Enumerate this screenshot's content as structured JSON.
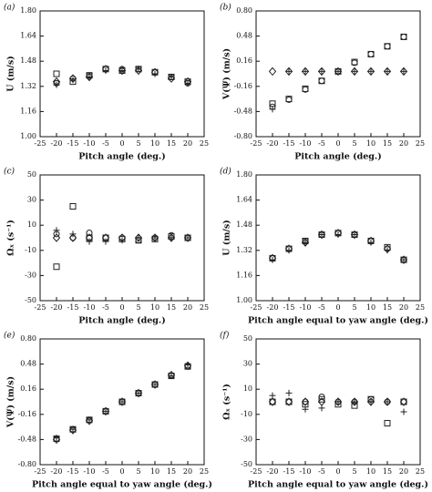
{
  "chart_data": [
    {
      "type": "scatter",
      "label": "(a)",
      "x_label": "Pitch angle (deg.)",
      "y_label": "U (m/s)",
      "x": [
        -20,
        -15,
        -10,
        -5,
        0,
        5,
        10,
        15,
        20
      ],
      "xlim": [
        -25,
        25
      ],
      "xticks": [
        -25,
        -20,
        -15,
        -10,
        -5,
        0,
        5,
        10,
        15,
        20,
        25
      ],
      "ylim": [
        1.0,
        1.8
      ],
      "yticks": [
        {
          "value": 1.0,
          "label": "1.00"
        },
        1.16,
        1.32,
        1.48,
        1.64,
        {
          "value": 1.8,
          "label": "1.80"
        }
      ],
      "series": [
        {
          "marker": "square",
          "color": "#222",
          "values": [
            1.4,
            1.35,
            1.39,
            1.43,
            1.42,
            1.43,
            1.41,
            1.38,
            1.35
          ]
        },
        {
          "marker": "circle",
          "color": "#222",
          "values": [
            1.34,
            1.37,
            1.39,
            1.43,
            1.43,
            1.43,
            1.41,
            1.38,
            1.34
          ]
        },
        {
          "marker": "diamond",
          "color": "#222",
          "values": [
            1.35,
            1.37,
            1.38,
            1.43,
            1.42,
            1.42,
            1.41,
            1.37,
            1.35
          ]
        },
        {
          "marker": "plus",
          "color": "#222",
          "values": [
            1.33,
            1.36,
            1.38,
            1.42,
            1.42,
            1.43,
            1.4,
            1.38,
            1.34
          ]
        }
      ]
    },
    {
      "type": "scatter",
      "label": "(b)",
      "x_label": "Pitch angle (deg.)",
      "y_label": "V(Ψ) (m/s)",
      "x": [
        -20,
        -15,
        -10,
        -5,
        0,
        5,
        10,
        15,
        20
      ],
      "xlim": [
        -25,
        25
      ],
      "xticks": [
        -25,
        -20,
        -15,
        -10,
        -5,
        0,
        5,
        10,
        15,
        20,
        25
      ],
      "ylim": [
        -0.8,
        0.8
      ],
      "yticks": [
        {
          "value": -0.8,
          "label": "-0.80"
        },
        -0.48,
        -0.16,
        0.16,
        0.48,
        {
          "value": 0.8,
          "label": "0.80"
        }
      ],
      "series": [
        {
          "marker": "square",
          "color": "#222",
          "values": [
            -0.38,
            -0.32,
            -0.19,
            -0.09,
            0.03,
            0.15,
            0.25,
            0.35,
            0.47
          ]
        },
        {
          "marker": "circle",
          "color": "#222",
          "values": [
            -0.42,
            -0.33,
            -0.2,
            -0.09,
            0.03,
            0.14,
            0.25,
            0.35,
            0.47
          ]
        },
        {
          "marker": "diamond",
          "color": "#222",
          "values": [
            0.03,
            0.03,
            0.03,
            0.03,
            0.03,
            0.03,
            0.03,
            0.03,
            0.03
          ]
        },
        {
          "marker": "plus",
          "color": "#222",
          "values": [
            -0.45,
            0.03,
            0.03,
            0.03,
            0.03,
            0.03,
            0.03,
            0.03,
            0.03
          ]
        }
      ]
    },
    {
      "type": "scatter",
      "label": "(c)",
      "x_label": "Pitch angle (deg.)",
      "y_label": "Ωₓ (s⁻¹)",
      "x": [
        -20,
        -15,
        -10,
        -5,
        0,
        5,
        10,
        15,
        20
      ],
      "xlim": [
        -25,
        25
      ],
      "xticks": [
        -25,
        -20,
        -15,
        -10,
        -5,
        0,
        5,
        10,
        15,
        20,
        25
      ],
      "ylim": [
        -50,
        50
      ],
      "yticks": [
        -50,
        -30,
        -10,
        10,
        30,
        50
      ],
      "series": [
        {
          "marker": "square",
          "color": "#222",
          "values": [
            -23,
            25,
            0,
            0,
            -1,
            -2,
            -1,
            1,
            0
          ]
        },
        {
          "marker": "circle",
          "color": "#222",
          "values": [
            3,
            0,
            4,
            0,
            0,
            -2,
            0,
            2,
            0
          ]
        },
        {
          "marker": "diamond",
          "color": "#222",
          "values": [
            0,
            0,
            0,
            0,
            0,
            0,
            0,
            0,
            0
          ]
        },
        {
          "marker": "plus",
          "color": "#222",
          "values": [
            6,
            3,
            -3,
            -3,
            -2,
            0,
            0,
            0,
            0
          ]
        }
      ]
    },
    {
      "type": "scatter",
      "label": "(d)",
      "x_label": "Pitch angle equal to yaw angle (deg.)",
      "y_label": "U (m/s)",
      "x": [
        -20,
        -15,
        -10,
        -5,
        0,
        5,
        10,
        15,
        20
      ],
      "xlim": [
        -25,
        25
      ],
      "xticks": [
        -25,
        -20,
        -15,
        -10,
        -5,
        0,
        5,
        10,
        15,
        20,
        25
      ],
      "ylim": [
        1.0,
        1.8
      ],
      "yticks": [
        {
          "value": 1.0,
          "label": "1.00"
        },
        1.16,
        1.32,
        1.48,
        1.64,
        {
          "value": 1.8,
          "label": "1.80"
        }
      ],
      "series": [
        {
          "marker": "square",
          "color": "#222",
          "values": [
            1.27,
            1.33,
            1.38,
            1.42,
            1.43,
            1.42,
            1.38,
            1.34,
            1.26
          ]
        },
        {
          "marker": "circle",
          "color": "#222",
          "values": [
            1.27,
            1.33,
            1.38,
            1.42,
            1.43,
            1.42,
            1.38,
            1.33,
            1.26
          ]
        },
        {
          "marker": "diamond",
          "color": "#222",
          "values": [
            1.27,
            1.33,
            1.37,
            1.42,
            1.43,
            1.42,
            1.38,
            1.33,
            1.26
          ]
        },
        {
          "marker": "plus",
          "color": "#222",
          "values": [
            1.26,
            1.32,
            1.37,
            1.42,
            1.42,
            1.42,
            1.37,
            1.32,
            1.26
          ]
        }
      ]
    },
    {
      "type": "scatter",
      "label": "(e)",
      "x_label": "Pitch angle equal to yaw angle (deg.)",
      "y_label": "V(Ψ) (m/s)",
      "x": [
        -20,
        -15,
        -10,
        -5,
        0,
        5,
        10,
        15,
        20
      ],
      "xlim": [
        -25,
        25
      ],
      "xticks": [
        -25,
        -20,
        -15,
        -10,
        -5,
        0,
        5,
        10,
        15,
        20,
        25
      ],
      "ylim": [
        -0.8,
        0.8
      ],
      "yticks": [
        {
          "value": -0.8,
          "label": "-0.80"
        },
        -0.48,
        -0.16,
        0.16,
        0.48,
        {
          "value": 0.8,
          "label": "0.80"
        }
      ],
      "series": [
        {
          "marker": "square",
          "color": "#222",
          "values": [
            -0.47,
            -0.35,
            -0.23,
            -0.12,
            0.0,
            0.11,
            0.22,
            0.33,
            0.45
          ]
        },
        {
          "marker": "circle",
          "color": "#222",
          "values": [
            -0.47,
            -0.35,
            -0.23,
            -0.12,
            0.0,
            0.11,
            0.22,
            0.33,
            0.45
          ]
        },
        {
          "marker": "diamond",
          "color": "#222",
          "values": [
            -0.48,
            -0.36,
            -0.24,
            -0.12,
            0.0,
            0.11,
            0.22,
            0.34,
            0.46
          ]
        },
        {
          "marker": "plus",
          "color": "#222",
          "values": [
            -0.46,
            -0.35,
            -0.23,
            -0.12,
            0.0,
            0.11,
            0.22,
            0.33,
            0.47
          ]
        }
      ]
    },
    {
      "type": "scatter",
      "label": "(f)",
      "x_label": "Pitch angle equal to yaw angle (deg.)",
      "y_label": "Ωₓ (s⁻¹)",
      "x": [
        -20,
        -15,
        -10,
        -5,
        0,
        5,
        10,
        15,
        20
      ],
      "xlim": [
        -25,
        25
      ],
      "xticks": [
        -25,
        -20,
        -15,
        -10,
        -5,
        0,
        5,
        10,
        15,
        20,
        25
      ],
      "ylim": [
        -50,
        50
      ],
      "yticks": [
        -50,
        -30,
        -10,
        10,
        30,
        50
      ],
      "series": [
        {
          "marker": "square",
          "color": "#222",
          "values": [
            0,
            0,
            -2,
            2,
            -2,
            -3,
            2,
            -17,
            0
          ]
        },
        {
          "marker": "circle",
          "color": "#222",
          "values": [
            0,
            0,
            0,
            4,
            0,
            0,
            2,
            0,
            0
          ]
        },
        {
          "marker": "diamond",
          "color": "#222",
          "values": [
            0,
            0,
            0,
            0,
            0,
            0,
            0,
            0,
            0
          ]
        },
        {
          "marker": "plus",
          "color": "#222",
          "values": [
            5,
            7,
            -6,
            -5,
            0,
            0,
            0,
            0,
            -8
          ]
        }
      ]
    }
  ]
}
